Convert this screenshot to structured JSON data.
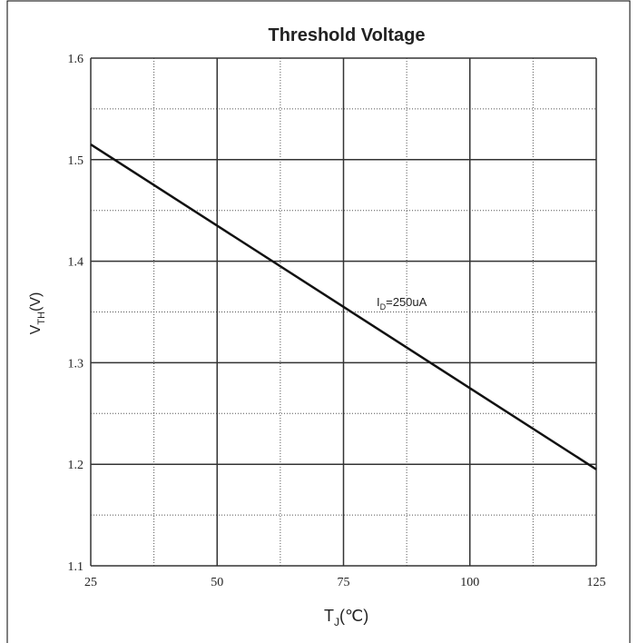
{
  "chart_data": {
    "type": "line",
    "title": "Threshold Voltage",
    "xlabel": [
      "T",
      "J",
      "(℃)"
    ],
    "ylabel": [
      "V",
      "TH",
      "(V)"
    ],
    "annotation": [
      "I",
      "D",
      "=250uA"
    ],
    "x": [
      25,
      125
    ],
    "series": [
      {
        "color": "#111111",
        "values": [
          1.515,
          1.195
        ]
      }
    ],
    "xlim": [
      25,
      125
    ],
    "xticks": [
      25,
      50,
      75,
      100,
      125
    ],
    "minor_xticks": [
      37.5,
      62.5,
      87.5,
      112.5
    ],
    "ylim": [
      1.1,
      1.6
    ],
    "yticks": [
      1.1,
      1.2,
      1.3,
      1.4,
      1.5,
      1.6
    ],
    "minor_yticks": [
      1.15,
      1.25,
      1.35,
      1.45,
      1.55
    ],
    "grid": true
  }
}
